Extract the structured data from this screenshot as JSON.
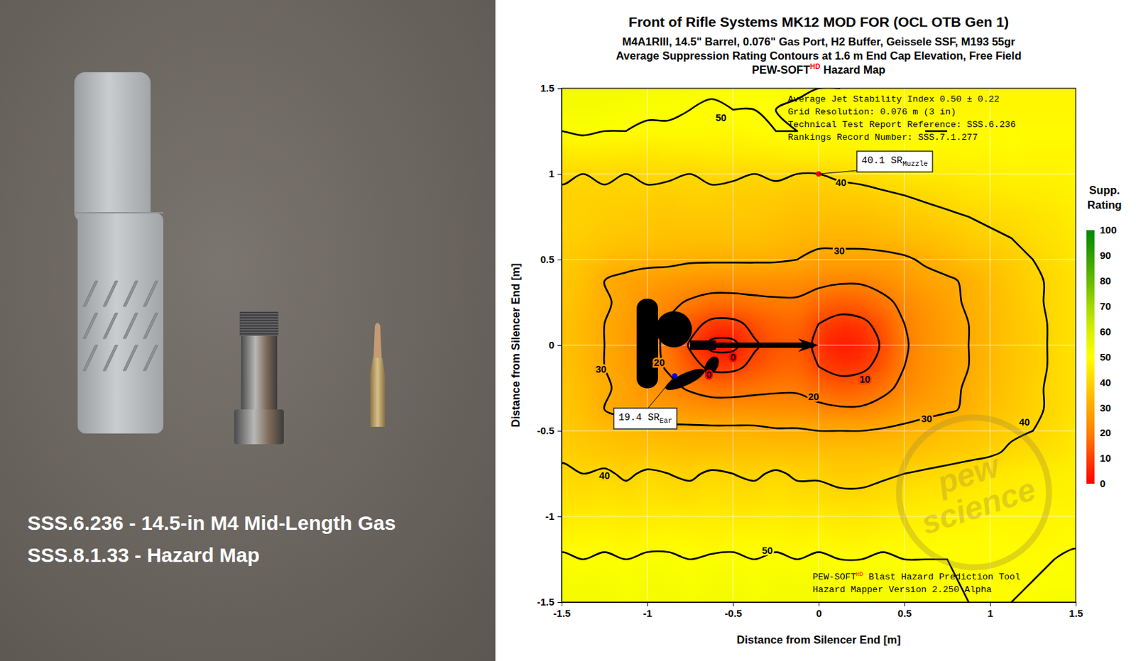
{
  "chart_data": {
    "type": "contour",
    "title": "Front of Rifle Systems MK12 MOD FOR (OCL OTB Gen 1)",
    "subtitle": [
      "M4A1RIII, 14.5\" Barrel, 0.076\" Gas Port, H2 Buffer, Geissele SSF, M193 55gr",
      "Average Suppression Rating Contours at 1.6 m End Cap Elevation, Free Field"
    ],
    "product_title": {
      "text": "PEW-SOFT",
      "sup": "HD",
      "rest": " Hazard Map"
    },
    "xlabel": "Distance from Silencer End [m]",
    "ylabel": "Distance from Silencer End [m]",
    "xlim": [
      -1.5,
      1.5
    ],
    "ylim": [
      -1.5,
      1.5
    ],
    "xticks": [
      -1.5,
      -1,
      -0.5,
      0,
      0.5,
      1,
      1.5
    ],
    "yticks": [
      -1.5,
      -1,
      -0.5,
      0,
      0.5,
      1,
      1.5
    ],
    "grid": true,
    "x": [
      -1.5,
      -1.375,
      -1.25,
      -1.125,
      -1,
      -0.875,
      -0.75,
      -0.625,
      -0.5,
      -0.375,
      -0.25,
      -0.125,
      0,
      0.125,
      0.25,
      0.375,
      0.5,
      0.625,
      0.75,
      0.875,
      1,
      1.125,
      1.25,
      1.375,
      1.5
    ],
    "y": [
      -1.5,
      -1.375,
      -1.25,
      -1.125,
      -1,
      -0.875,
      -0.75,
      -0.625,
      -0.5,
      -0.375,
      -0.25,
      -0.125,
      0,
      0.125,
      0.25,
      0.375,
      0.5,
      0.625,
      0.75,
      0.875,
      1,
      1.125,
      1.25,
      1.375,
      1.5
    ],
    "z": [
      [
        53,
        53,
        53,
        52,
        53,
        53,
        52,
        53,
        53,
        52,
        53,
        53,
        53,
        52,
        52,
        53,
        53,
        52,
        51,
        50,
        49,
        50,
        51,
        52,
        52
      ],
      [
        52,
        52,
        52,
        51,
        52,
        52,
        51,
        52,
        52,
        51,
        52,
        52,
        52,
        51,
        51,
        52,
        52,
        51,
        51,
        49,
        49,
        49,
        50,
        51,
        51
      ],
      [
        51,
        50,
        51,
        50,
        51,
        51,
        50,
        51,
        51,
        50,
        51,
        50,
        51,
        50,
        50,
        51,
        50,
        50,
        50,
        49,
        49,
        49,
        49,
        50,
        51
      ],
      [
        48,
        48,
        48,
        47,
        48,
        48,
        48,
        47,
        48,
        48,
        48,
        47,
        48,
        47,
        47,
        48,
        48,
        48,
        49,
        49,
        49,
        49,
        48,
        48,
        49
      ],
      [
        45,
        45,
        46,
        45,
        45,
        46,
        45,
        46,
        45,
        45,
        46,
        45,
        45,
        45,
        44,
        45,
        46,
        46,
        47,
        47,
        48,
        48,
        48,
        48,
        48
      ],
      [
        43,
        42,
        43,
        42,
        43,
        42,
        42,
        43,
        42,
        42,
        43,
        42,
        42,
        41,
        41,
        42,
        43,
        44,
        44,
        45,
        46,
        46,
        47,
        47,
        47
      ],
      [
        41,
        40,
        41,
        39,
        41,
        40,
        39,
        41,
        40,
        39,
        41,
        39,
        39,
        38,
        38,
        39,
        40,
        41,
        42,
        43,
        44,
        45,
        46,
        46,
        47
      ],
      [
        39,
        38,
        37,
        36,
        36,
        36,
        35,
        35,
        35,
        35,
        35,
        35,
        35,
        35,
        35,
        35,
        35,
        36,
        37,
        38,
        39,
        41,
        42,
        43,
        45
      ],
      [
        38,
        36,
        35,
        34,
        33,
        32,
        32,
        32,
        32,
        32,
        31,
        31,
        30,
        30,
        30,
        31,
        32,
        33,
        35,
        36,
        37,
        39,
        40,
        42,
        44
      ],
      [
        37,
        35,
        30,
        28,
        27,
        26,
        25,
        24,
        24,
        24,
        23,
        23,
        22,
        21,
        21,
        23,
        26,
        28,
        29,
        31,
        35,
        37,
        39,
        41,
        43
      ],
      [
        37,
        34,
        31,
        28,
        25,
        22,
        19,
        17,
        17,
        18,
        19,
        19,
        16,
        14,
        15,
        18,
        22,
        25,
        28,
        31,
        34,
        36,
        39,
        41,
        43
      ],
      [
        36,
        33,
        30,
        27,
        23,
        19,
        13,
        8,
        8,
        12,
        15,
        16,
        10,
        7,
        8,
        13,
        20,
        24,
        27,
        30,
        33,
        36,
        38,
        41,
        43
      ],
      [
        36,
        33,
        30,
        27,
        23,
        18,
        9,
        -3,
        -3,
        9,
        13,
        14,
        8,
        3,
        5,
        11,
        19,
        24,
        27,
        30,
        33,
        36,
        38,
        41,
        43
      ],
      [
        36,
        33,
        30,
        27,
        23,
        19,
        13,
        8,
        8,
        12,
        15,
        16,
        10,
        7,
        8,
        13,
        20,
        24,
        27,
        30,
        33,
        36,
        38,
        41,
        43
      ],
      [
        37,
        34,
        31,
        28,
        25,
        22,
        19,
        17,
        17,
        18,
        19,
        19,
        16,
        14,
        15,
        18,
        22,
        25,
        28,
        31,
        34,
        36,
        39,
        41,
        43
      ],
      [
        37,
        35,
        30,
        28,
        27,
        26,
        25,
        24,
        24,
        24,
        23,
        23,
        22,
        21,
        21,
        23,
        26,
        28,
        29,
        31,
        34,
        37,
        39,
        41,
        43
      ],
      [
        38,
        36,
        34,
        33,
        32,
        32,
        31,
        31,
        31,
        31,
        31,
        30,
        28,
        28,
        28,
        28,
        29,
        31,
        33,
        35,
        36,
        38,
        40,
        42,
        44
      ],
      [
        39,
        38,
        37,
        36,
        36,
        35,
        35,
        35,
        35,
        35,
        34,
        33,
        32,
        32,
        32,
        33,
        34,
        35,
        36,
        38,
        39,
        40,
        42,
        43,
        45
      ],
      [
        39,
        39,
        38,
        38,
        37,
        37,
        37,
        37,
        37,
        37,
        36,
        35,
        35,
        35,
        35,
        36,
        37,
        38,
        39,
        40,
        41,
        42,
        43,
        44,
        46
      ],
      [
        39,
        39,
        39,
        39,
        39,
        38,
        39,
        39,
        38,
        38,
        38,
        37,
        37,
        38,
        38,
        39,
        40,
        41,
        42,
        43,
        44,
        45,
        45,
        46,
        47
      ],
      [
        41,
        40,
        41,
        40,
        41,
        41,
        40,
        41,
        41,
        40,
        41,
        40,
        40,
        41,
        42,
        43,
        44,
        45,
        45,
        46,
        46,
        47,
        47,
        47,
        48
      ],
      [
        45,
        46,
        45,
        45,
        44,
        45,
        45,
        46,
        45,
        46,
        46,
        47,
        47,
        47,
        47,
        48,
        48,
        48,
        48,
        48,
        48,
        49,
        48,
        48,
        48
      ],
      [
        50,
        51,
        50,
        50,
        49,
        49,
        49,
        49,
        48,
        49,
        50,
        50,
        49,
        49,
        49,
        49,
        49,
        50,
        50,
        49,
        49,
        49,
        49,
        49,
        49
      ],
      [
        52,
        52,
        52,
        51,
        51,
        51,
        50,
        49,
        50,
        50,
        50,
        49,
        49,
        49,
        49,
        48,
        48,
        48,
        48,
        48,
        48,
        48,
        48,
        48,
        48
      ],
      [
        53,
        53,
        53,
        53,
        52,
        52,
        52,
        51,
        51,
        51,
        51,
        51,
        50,
        50,
        49,
        49,
        48,
        48,
        48,
        48,
        48,
        48,
        48,
        48,
        48
      ]
    ],
    "contour_levels": [
      0,
      10,
      20,
      30,
      40,
      50
    ],
    "contour_labels": [
      {
        "value": 50,
        "x": -0.57,
        "y": 1.33
      },
      {
        "value": 50,
        "x": -0.3,
        "y": -1.2
      },
      {
        "value": 40,
        "x": 0.13,
        "y": 0.95
      },
      {
        "value": 40,
        "x": 1.2,
        "y": -0.45
      },
      {
        "value": 40,
        "x": -1.25,
        "y": -0.76
      },
      {
        "value": 30,
        "x": 0.12,
        "y": 0.55
      },
      {
        "value": 30,
        "x": 0.63,
        "y": -0.43
      },
      {
        "value": 30,
        "x": -1.27,
        "y": -0.14
      },
      {
        "value": 20,
        "x": -0.93,
        "y": -0.1
      },
      {
        "value": 20,
        "x": -0.03,
        "y": -0.3
      },
      {
        "value": 10,
        "x": 0.27,
        "y": -0.2
      },
      {
        "value": 0,
        "x": -0.5,
        "y": -0.07
      },
      {
        "value": 0,
        "x": -0.64,
        "y": -0.17
      }
    ],
    "colorbar": {
      "title": [
        "Supp.",
        "Rating"
      ],
      "range": [
        0,
        100
      ],
      "ticks": [
        0,
        10,
        20,
        30,
        40,
        50,
        60,
        70,
        80,
        90,
        100
      ],
      "colors": [
        "#ff0000",
        "#ff4000",
        "#ff8000",
        "#ffaa00",
        "#ffd500",
        "#ffff00",
        "#d9f000",
        "#a6d800",
        "#66bb00",
        "#33a000",
        "#008800"
      ]
    },
    "markers": [
      {
        "value": 40.1,
        "label": "SR",
        "sub": "Muzzle",
        "x": 0,
        "y": 1,
        "color": "#ff0000"
      },
      {
        "value": 19.4,
        "label": "SR",
        "sub": "Ear",
        "x": -0.84,
        "y": -0.18,
        "color": "#0000ff"
      }
    ],
    "info": [
      "Average Jet Stability Index 0.50 ± 0.22",
      "Grid Resolution: 0.076 m (3 in)",
      "Technical Test Report Reference: SSS.6.236",
      "Rankings Record Number: SSS.7.1.277"
    ],
    "footer": [
      {
        "text": "PEW-SOFT",
        "sup": "HD",
        "rest": " Blast Hazard Prediction Tool"
      },
      {
        "text": "Hazard Mapper Version 2.250 Alpha"
      }
    ],
    "watermark": [
      "pew",
      "science"
    ]
  },
  "photo": {
    "captions": [
      "SSS.6.236 - 14.5-in M4 Mid-Length Gas",
      "SSS.8.1.33 - Hazard Map"
    ]
  }
}
